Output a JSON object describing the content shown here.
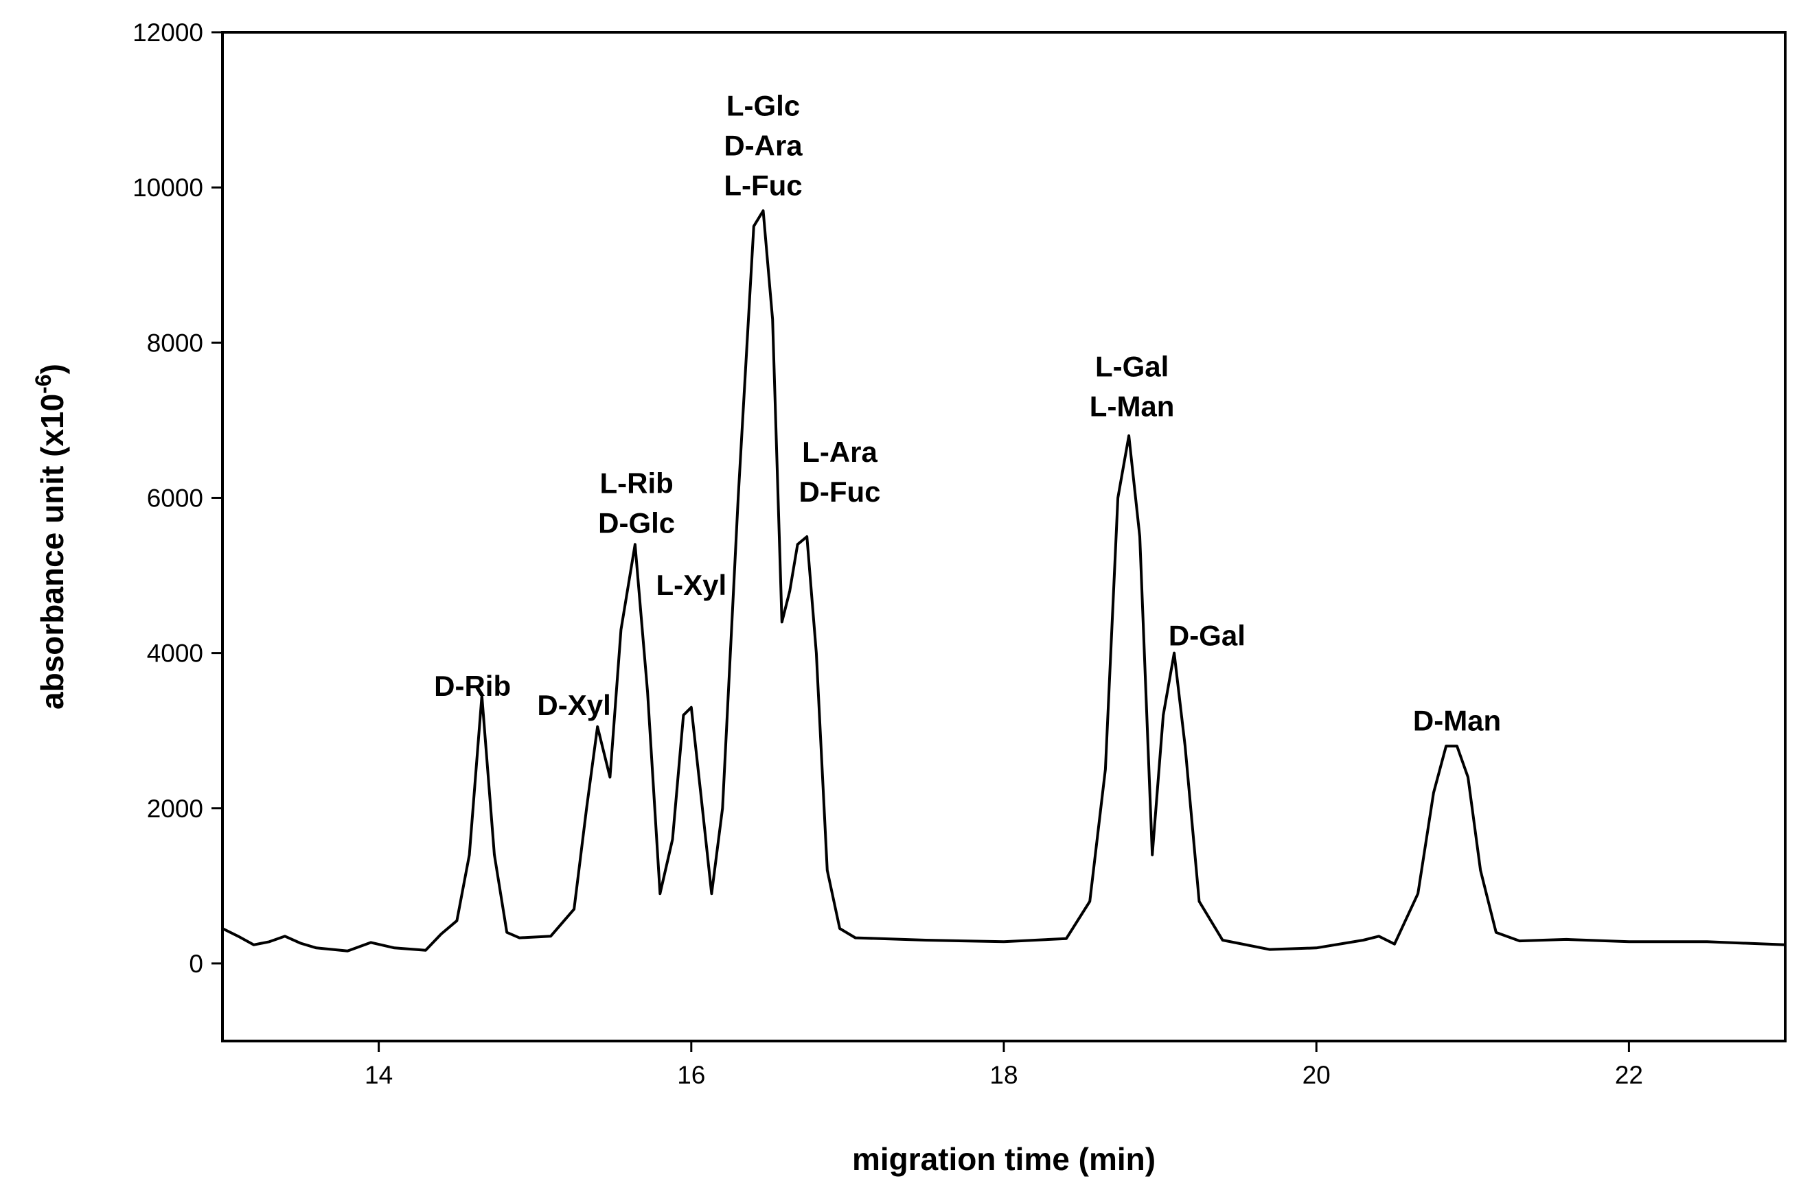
{
  "chart_data": {
    "type": "line",
    "xlabel": "migration time (min)",
    "ylabel_main": "absorbance unit (x10",
    "ylabel_exp": "-6",
    "ylabel_close": ")",
    "xlim": [
      13,
      23
    ],
    "ylim": [
      -1000,
      12000
    ],
    "xticks": [
      14,
      16,
      18,
      20,
      22
    ],
    "yticks": [
      0,
      2000,
      4000,
      6000,
      8000,
      10000,
      12000
    ],
    "grid": false,
    "series": [
      {
        "x": [
          13.0,
          13.1,
          13.2,
          13.3,
          13.4,
          13.5,
          13.6,
          13.8,
          13.95,
          14.1,
          14.3,
          14.4,
          14.5,
          14.58,
          14.66,
          14.74,
          14.82,
          14.9,
          15.1,
          15.25,
          15.33,
          15.4,
          15.48,
          15.55,
          15.64,
          15.72,
          15.8,
          15.88,
          15.95,
          16.0,
          16.06,
          16.13,
          16.2,
          16.3,
          16.4,
          16.46,
          16.52,
          16.58,
          16.63,
          16.68,
          16.74,
          16.8,
          16.87,
          16.95,
          17.05,
          17.5,
          18.0,
          18.4,
          18.55,
          18.65,
          18.73,
          18.8,
          18.87,
          18.95,
          19.02,
          19.09,
          19.16,
          19.25,
          19.4,
          19.7,
          20.0,
          20.3,
          20.4,
          20.5,
          20.65,
          20.75,
          20.83,
          20.9,
          20.97,
          21.05,
          21.15,
          21.3,
          21.6,
          22.0,
          22.5,
          23.0
        ],
        "y": [
          450,
          350,
          240,
          280,
          350,
          260,
          200,
          160,
          270,
          200,
          170,
          380,
          550,
          1400,
          3450,
          1400,
          400,
          330,
          350,
          700,
          2000,
          3050,
          2400,
          4300,
          5400,
          3500,
          900,
          1600,
          3200,
          3300,
          2200,
          900,
          2000,
          6000,
          9500,
          9700,
          8300,
          4400,
          4800,
          5400,
          5500,
          4000,
          1200,
          450,
          330,
          300,
          280,
          320,
          800,
          2500,
          6000,
          6800,
          5500,
          1400,
          3200,
          4000,
          2800,
          800,
          300,
          180,
          200,
          300,
          350,
          250,
          900,
          2200,
          2800,
          2800,
          2400,
          1200,
          400,
          290,
          310,
          280,
          280,
          240
        ]
      }
    ],
    "annotations": [
      {
        "lines": [
          "D-Rib"
        ],
        "x": 14.6,
        "y": 3450
      },
      {
        "lines": [
          "D-Xyl"
        ],
        "x": 15.25,
        "y": 3200
      },
      {
        "lines": [
          "L-Rib",
          "D-Glc"
        ],
        "x": 15.65,
        "y": 5550
      },
      {
        "lines": [
          "L-Xyl"
        ],
        "x": 16.0,
        "y": 4750
      },
      {
        "lines": [
          "L-Glc",
          "D-Ara",
          "L-Fuc"
        ],
        "x": 16.46,
        "y": 9900
      },
      {
        "lines": [
          "L-Ara",
          "D-Fuc"
        ],
        "x": 16.95,
        "y": 5950
      },
      {
        "lines": [
          "L-Gal",
          "L-Man"
        ],
        "x": 18.82,
        "y": 7050
      },
      {
        "lines": [
          "D-Gal"
        ],
        "x": 19.3,
        "y": 4100
      },
      {
        "lines": [
          "D-Man"
        ],
        "x": 20.9,
        "y": 3000
      }
    ]
  }
}
